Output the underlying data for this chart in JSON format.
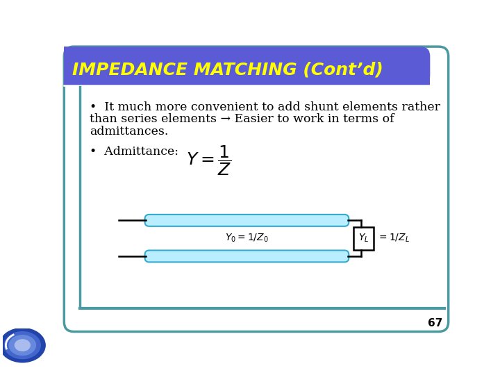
{
  "title": "IMPEDANCE MATCHING (Cont’d)",
  "title_color": "#FFFF00",
  "header_bg_color": "#5B5BD6",
  "slide_bg_color": "#FFFFFF",
  "border_color": "#4A9AA0",
  "bullet1_line1": "•  It much more convenient to add shunt elements rather",
  "bullet1_line2": "than series elements → Easier to work in terms of",
  "bullet1_line3": "admittances.",
  "bullet2_label": "•  Admittance:",
  "page_number": "67",
  "text_color": "#000000",
  "tube_fill": "#B8EEFF",
  "tube_edge": "#33AACC",
  "box_color": "#000000",
  "left_bar_color": "#4A9AA0",
  "bottom_bar_color": "#4A9AA0"
}
